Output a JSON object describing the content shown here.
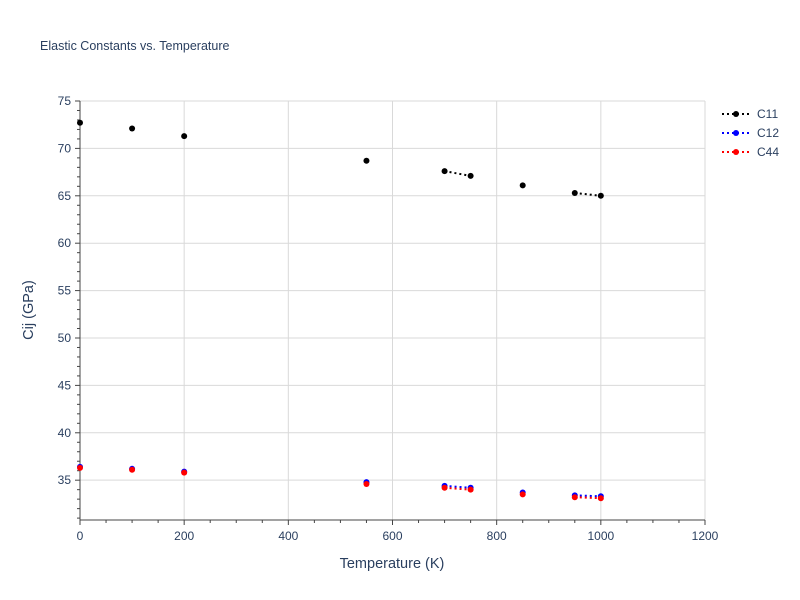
{
  "chart_data": {
    "type": "scatter",
    "title": "Elastic Constants vs. Temperature",
    "xlabel": "Temperature (K)",
    "ylabel": "Cij (GPa)",
    "xlim": [
      0,
      1200
    ],
    "ylim": [
      30.8,
      75
    ],
    "x_ticks": [
      0,
      200,
      400,
      600,
      800,
      1000,
      1200
    ],
    "y_ticks": [
      35,
      40,
      45,
      50,
      55,
      60,
      65,
      70,
      75
    ],
    "grid": true,
    "legend_position": "top-right",
    "series": [
      {
        "name": "C11",
        "color": "#000000",
        "x": [
          0,
          100,
          200,
          550,
          700,
          750,
          850,
          950,
          1000
        ],
        "y": [
          72.7,
          72.1,
          71.3,
          68.7,
          67.6,
          67.1,
          66.1,
          65.3,
          65.0
        ],
        "segments": [
          [
            4,
            5
          ],
          [
            7,
            8
          ]
        ]
      },
      {
        "name": "C12",
        "color": "#0000ff",
        "x": [
          0,
          100,
          200,
          550,
          700,
          750,
          850,
          950,
          1000
        ],
        "y": [
          36.4,
          36.2,
          35.9,
          34.8,
          34.4,
          34.2,
          33.7,
          33.4,
          33.3
        ],
        "segments": [
          [
            4,
            5
          ],
          [
            7,
            8
          ]
        ]
      },
      {
        "name": "C44",
        "color": "#ff0000",
        "x": [
          0,
          100,
          200,
          550,
          700,
          750,
          850,
          950,
          1000
        ],
        "y": [
          36.3,
          36.1,
          35.8,
          34.6,
          34.2,
          34.0,
          33.5,
          33.2,
          33.1
        ],
        "segments": [
          [
            4,
            5
          ],
          [
            7,
            8
          ]
        ]
      }
    ]
  }
}
